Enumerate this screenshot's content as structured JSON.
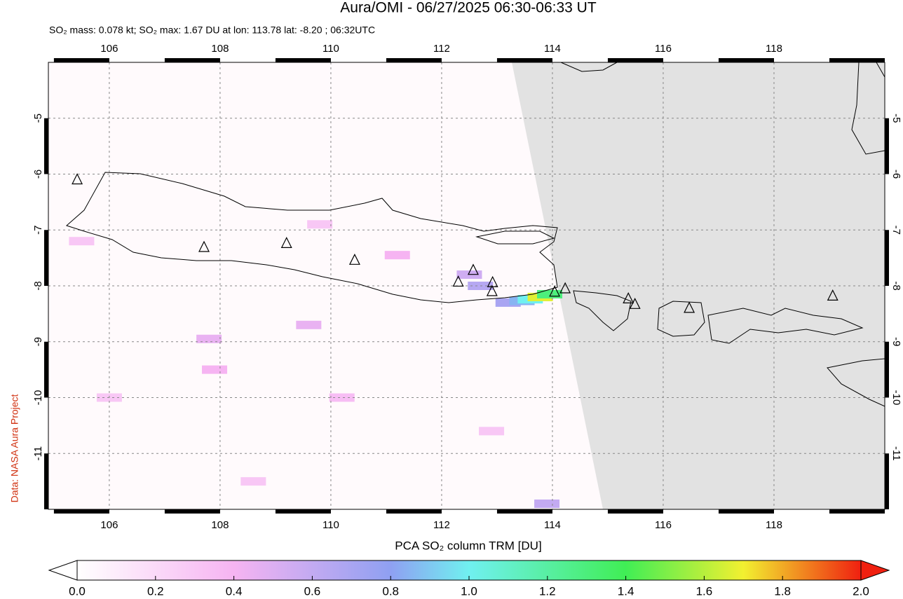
{
  "title": "Aura/OMI - 06/27/2025 06:30-06:33 UT",
  "subtitle": "SO₂ mass: 0.078 kt; SO₂ max: 1.67 DU at lon: 113.78 lat: -8.20 ; 06:32UTC",
  "credit": "Data: NASA Aura Project",
  "map": {
    "xlim": [
      104.9,
      120.0
    ],
    "ylim": [
      -12.0,
      -4.0
    ],
    "xticks": [
      106,
      108,
      110,
      112,
      114,
      116,
      118
    ],
    "yticks": [
      -5,
      -6,
      -7,
      -8,
      -9,
      -10,
      -11
    ],
    "grid": true,
    "volcanoes": [
      {
        "lon": 105.42,
        "lat": -6.1
      },
      {
        "lon": 107.71,
        "lat": -7.31
      },
      {
        "lon": 109.2,
        "lat": -7.24
      },
      {
        "lon": 110.43,
        "lat": -7.54
      },
      {
        "lon": 112.3,
        "lat": -7.93
      },
      {
        "lon": 112.57,
        "lat": -7.72
      },
      {
        "lon": 112.92,
        "lat": -7.94
      },
      {
        "lon": 112.91,
        "lat": -8.1
      },
      {
        "lon": 114.04,
        "lat": -8.11
      },
      {
        "lon": 114.23,
        "lat": -8.05
      },
      {
        "lon": 115.37,
        "lat": -8.23
      },
      {
        "lon": 115.49,
        "lat": -8.33
      },
      {
        "lon": 116.47,
        "lat": -8.4
      },
      {
        "lon": 119.06,
        "lat": -8.18
      }
    ],
    "pixels": [
      {
        "lon": 113.2,
        "lat": -8.3,
        "value": 0.7
      },
      {
        "lon": 113.45,
        "lat": -8.27,
        "value": 0.85
      },
      {
        "lon": 113.6,
        "lat": -8.24,
        "value": 1.0
      },
      {
        "lon": 113.78,
        "lat": -8.2,
        "value": 1.67
      },
      {
        "lon": 113.95,
        "lat": -8.15,
        "value": 1.3
      },
      {
        "lon": 112.7,
        "lat": -8.0,
        "value": 0.65
      },
      {
        "lon": 112.5,
        "lat": -7.8,
        "value": 0.55
      },
      {
        "lon": 111.2,
        "lat": -7.45,
        "value": 0.4
      },
      {
        "lon": 107.8,
        "lat": -8.95,
        "value": 0.45
      },
      {
        "lon": 109.6,
        "lat": -8.7,
        "value": 0.45
      },
      {
        "lon": 113.9,
        "lat": -11.9,
        "value": 0.6
      },
      {
        "lon": 106.0,
        "lat": -10.0,
        "value": 0.3
      },
      {
        "lon": 108.6,
        "lat": -11.5,
        "value": 0.3
      },
      {
        "lon": 110.2,
        "lat": -10.0,
        "value": 0.35
      },
      {
        "lon": 105.5,
        "lat": -7.2,
        "value": 0.3
      },
      {
        "lon": 109.8,
        "lat": -6.9,
        "value": 0.3
      },
      {
        "lon": 112.9,
        "lat": -10.6,
        "value": 0.3
      },
      {
        "lon": 107.9,
        "lat": -9.5,
        "value": 0.4
      }
    ]
  },
  "colorbar": {
    "label": "PCA SO₂ column TRM [DU]",
    "lim": [
      0,
      2
    ],
    "ticks": [
      {
        "value": 0,
        "label": "0.0"
      },
      0.2,
      0.4,
      0.6,
      0.8,
      {
        "value": 1,
        "label": "1.0"
      },
      1.2,
      1.4,
      1.6,
      1.8,
      {
        "value": 2,
        "label": "2.0"
      }
    ],
    "colors": [
      [
        0,
        "#ffffff"
      ],
      [
        0.4,
        "#f6b4f2"
      ],
      [
        0.8,
        "#8fa0f2"
      ],
      [
        1.0,
        "#70f0f0"
      ],
      [
        1.4,
        "#40ee55"
      ],
      [
        1.7,
        "#f2f030"
      ],
      [
        2.0,
        "#f02010"
      ]
    ]
  }
}
